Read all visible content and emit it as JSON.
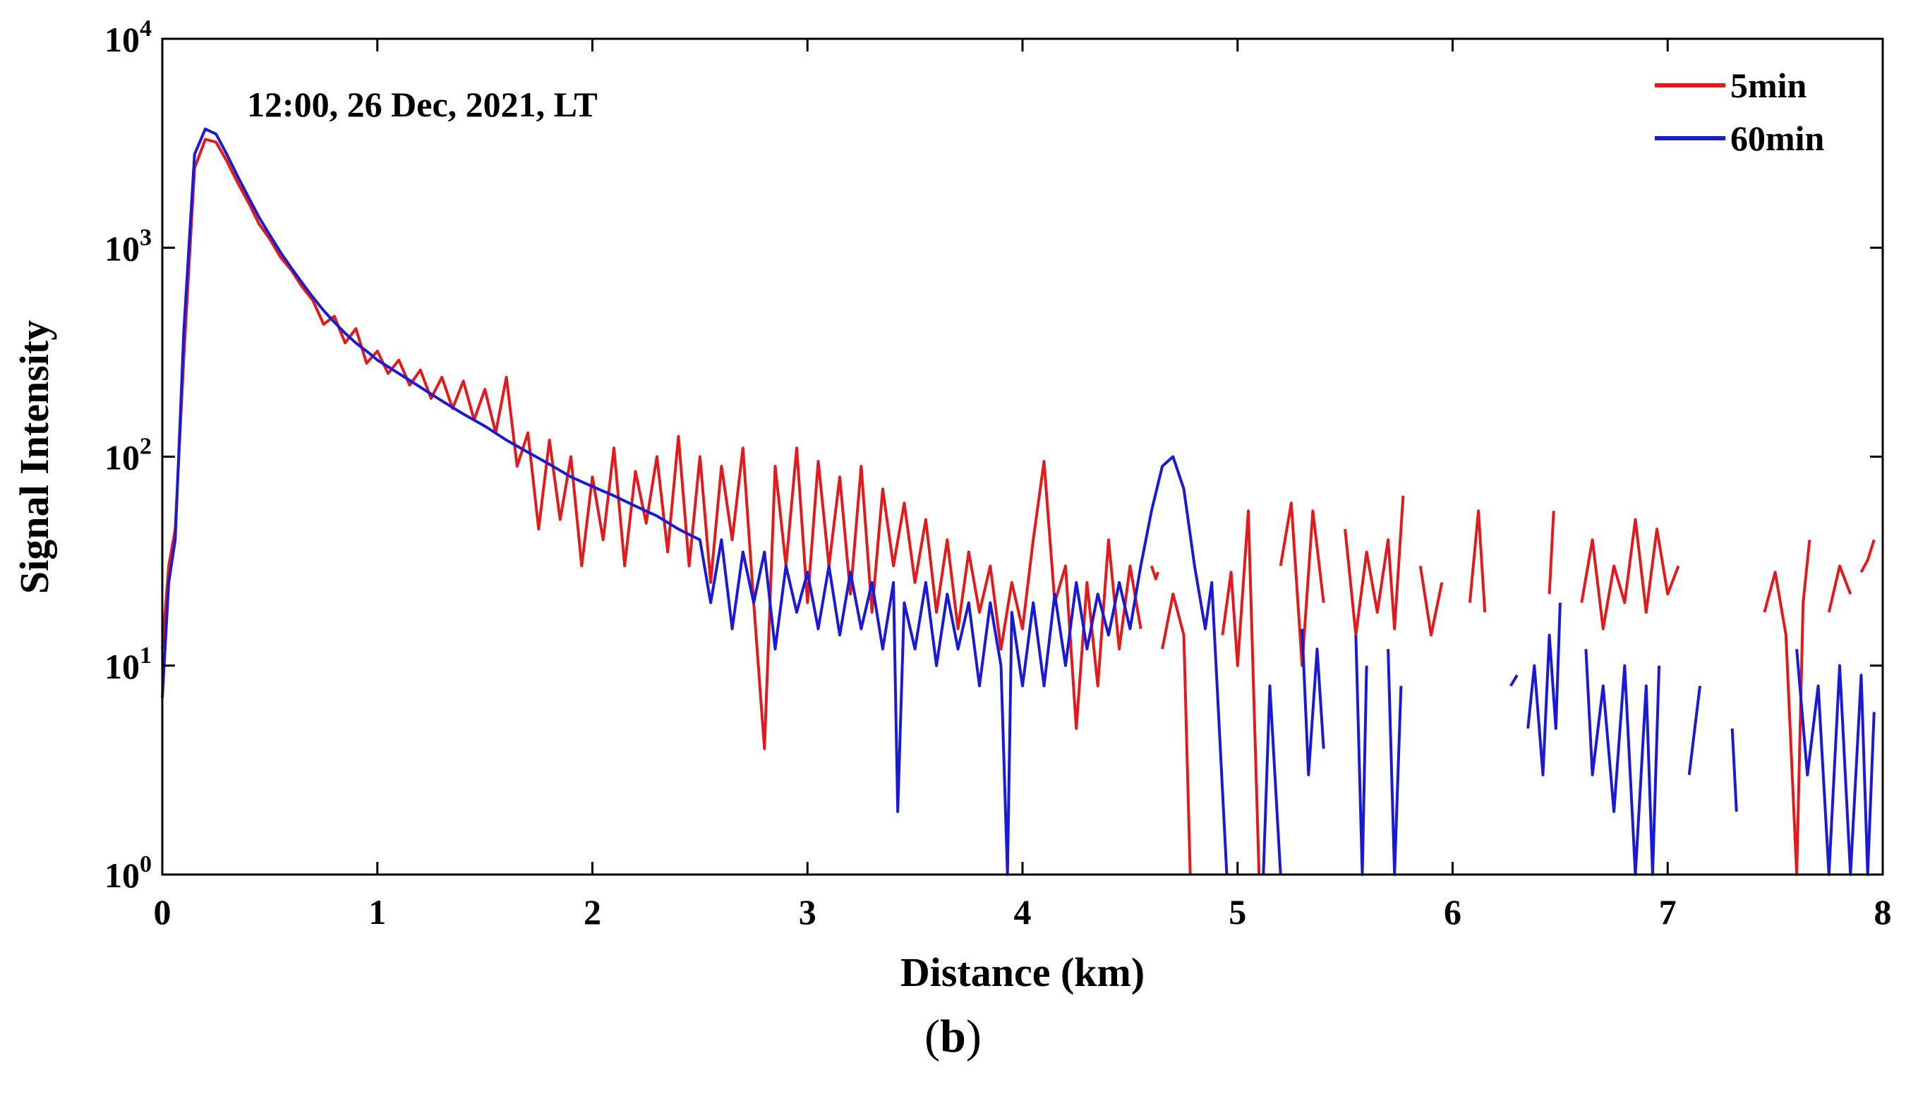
{
  "caption": {
    "open": "(",
    "letter": "b",
    "close": ")"
  },
  "chart_data": {
    "type": "line",
    "title": "",
    "annotation": "12:00, 26 Dec, 2021, LT",
    "xlabel": "Distance (km)",
    "ylabel": "Signal Intensity",
    "xlim": [
      0,
      8
    ],
    "ylim": [
      1,
      10000
    ],
    "yscale": "log",
    "x_ticks": [
      0,
      1,
      2,
      3,
      4,
      5,
      6,
      7,
      8
    ],
    "x_tick_labels": [
      "0",
      "1",
      "2",
      "3",
      "4",
      "5",
      "6",
      "7",
      "8"
    ],
    "y_ticks": [
      1,
      10,
      100,
      1000,
      10000
    ],
    "y_tick_labels": [
      {
        "base": "10",
        "exp": "0"
      },
      {
        "base": "10",
        "exp": "1"
      },
      {
        "base": "10",
        "exp": "2"
      },
      {
        "base": "10",
        "exp": "3"
      },
      {
        "base": "10",
        "exp": "4"
      }
    ],
    "grid": false,
    "legend_position": "top-right",
    "series": [
      {
        "name": "5min",
        "color": "#e31a1c",
        "points": [
          [
            0.0,
            12
          ],
          [
            0.03,
            30
          ],
          [
            0.06,
            45
          ],
          [
            0.1,
            300
          ],
          [
            0.15,
            2400
          ],
          [
            0.2,
            3300
          ],
          [
            0.25,
            3200
          ],
          [
            0.3,
            2600
          ],
          [
            0.35,
            2050
          ],
          [
            0.4,
            1650
          ],
          [
            0.45,
            1300
          ],
          [
            0.5,
            1100
          ],
          [
            0.55,
            900
          ],
          [
            0.6,
            780
          ],
          [
            0.65,
            650
          ],
          [
            0.7,
            560
          ],
          [
            0.75,
            430
          ],
          [
            0.8,
            470
          ],
          [
            0.85,
            350
          ],
          [
            0.9,
            410
          ],
          [
            0.95,
            280
          ],
          [
            1.0,
            320
          ],
          [
            1.05,
            250
          ],
          [
            1.1,
            290
          ],
          [
            1.15,
            220
          ],
          [
            1.2,
            260
          ],
          [
            1.25,
            190
          ],
          [
            1.3,
            240
          ],
          [
            1.35,
            170
          ],
          [
            1.4,
            230
          ],
          [
            1.45,
            150
          ],
          [
            1.5,
            210
          ],
          [
            1.55,
            130
          ],
          [
            1.6,
            240
          ],
          [
            1.65,
            90
          ],
          [
            1.7,
            130
          ],
          [
            1.75,
            45
          ],
          [
            1.8,
            120
          ],
          [
            1.85,
            50
          ],
          [
            1.9,
            100
          ],
          [
            1.95,
            30
          ],
          [
            2.0,
            80
          ],
          [
            2.05,
            40
          ],
          [
            2.1,
            110
          ],
          [
            2.15,
            30
          ],
          [
            2.2,
            85
          ],
          [
            2.25,
            48
          ],
          [
            2.3,
            100
          ],
          [
            2.35,
            35
          ],
          [
            2.4,
            125
          ],
          [
            2.45,
            30
          ],
          [
            2.5,
            100
          ],
          [
            2.55,
            25
          ],
          [
            2.6,
            90
          ],
          [
            2.65,
            40
          ],
          [
            2.7,
            110
          ],
          [
            2.75,
            20
          ],
          [
            2.8,
            4
          ],
          [
            2.85,
            90
          ],
          [
            2.9,
            30
          ],
          [
            2.95,
            110
          ],
          [
            3.0,
            20
          ],
          [
            3.05,
            95
          ],
          [
            3.1,
            30
          ],
          [
            3.15,
            80
          ],
          [
            3.2,
            22
          ],
          [
            3.25,
            90
          ],
          [
            3.3,
            18
          ],
          [
            3.35,
            70
          ],
          [
            3.4,
            30
          ],
          [
            3.45,
            60
          ],
          [
            3.5,
            25
          ],
          [
            3.55,
            50
          ],
          [
            3.6,
            18
          ],
          [
            3.65,
            40
          ],
          [
            3.7,
            15
          ],
          [
            3.75,
            35
          ],
          [
            3.8,
            18
          ],
          [
            3.85,
            30
          ],
          [
            3.9,
            12
          ],
          [
            3.95,
            25
          ],
          [
            4.0,
            15
          ],
          [
            4.05,
            40
          ],
          [
            4.1,
            95
          ],
          [
            4.15,
            20
          ],
          [
            4.2,
            30
          ],
          [
            4.25,
            5
          ],
          [
            4.3,
            25
          ],
          [
            4.35,
            8
          ],
          [
            4.4,
            40
          ],
          [
            4.45,
            12
          ],
          [
            4.5,
            30
          ],
          [
            4.55,
            15
          ]
        ],
        "segments": [
          [
            [
              4.6,
              30
            ],
            [
              4.62,
              26
            ],
            [
              4.63,
              28
            ]
          ],
          [
            [
              4.65,
              12
            ],
            [
              4.7,
              22
            ],
            [
              4.75,
              14
            ],
            [
              4.78,
              1
            ]
          ],
          [
            [
              4.93,
              14
            ],
            [
              4.97,
              28
            ],
            [
              5.0,
              10
            ],
            [
              5.05,
              55
            ],
            [
              5.1,
              1
            ]
          ],
          [
            [
              5.2,
              30
            ],
            [
              5.25,
              60
            ],
            [
              5.3,
              10
            ],
            [
              5.35,
              55
            ],
            [
              5.4,
              20
            ]
          ],
          [
            [
              5.5,
              45
            ],
            [
              5.55,
              14
            ],
            [
              5.6,
              35
            ],
            [
              5.65,
              18
            ],
            [
              5.7,
              40
            ],
            [
              5.73,
              15
            ],
            [
              5.77,
              65
            ]
          ],
          [
            [
              5.85,
              30
            ],
            [
              5.9,
              14
            ],
            [
              5.95,
              25
            ]
          ],
          [
            [
              6.08,
              20
            ],
            [
              6.12,
              55
            ],
            [
              6.15,
              18
            ]
          ],
          [
            [
              6.45,
              22
            ],
            [
              6.47,
              55
            ]
          ],
          [
            [
              6.6,
              20
            ],
            [
              6.65,
              40
            ],
            [
              6.7,
              15
            ],
            [
              6.75,
              30
            ],
            [
              6.8,
              20
            ],
            [
              6.85,
              50
            ],
            [
              6.9,
              18
            ],
            [
              6.95,
              45
            ],
            [
              7.0,
              22
            ],
            [
              7.05,
              30
            ]
          ],
          [
            [
              7.45,
              18
            ],
            [
              7.5,
              28
            ],
            [
              7.55,
              14
            ],
            [
              7.6,
              1
            ],
            [
              7.63,
              20
            ],
            [
              7.66,
              40
            ]
          ],
          [
            [
              7.75,
              18
            ],
            [
              7.8,
              30
            ],
            [
              7.85,
              22
            ]
          ],
          [
            [
              7.9,
              28
            ],
            [
              7.93,
              32
            ],
            [
              7.96,
              40
            ]
          ]
        ]
      },
      {
        "name": "60min",
        "color": "#1a1ad6",
        "points": [
          [
            0.0,
            7
          ],
          [
            0.03,
            25
          ],
          [
            0.06,
            40
          ],
          [
            0.1,
            400
          ],
          [
            0.15,
            2800
          ],
          [
            0.2,
            3700
          ],
          [
            0.25,
            3500
          ],
          [
            0.3,
            2800
          ],
          [
            0.35,
            2200
          ],
          [
            0.4,
            1750
          ],
          [
            0.45,
            1400
          ],
          [
            0.5,
            1150
          ],
          [
            0.55,
            950
          ],
          [
            0.6,
            800
          ],
          [
            0.65,
            680
          ],
          [
            0.7,
            580
          ],
          [
            0.75,
            500
          ],
          [
            0.8,
            440
          ],
          [
            0.85,
            390
          ],
          [
            0.9,
            350
          ],
          [
            0.95,
            320
          ],
          [
            1.0,
            290
          ],
          [
            1.1,
            250
          ],
          [
            1.2,
            215
          ],
          [
            1.3,
            185
          ],
          [
            1.4,
            160
          ],
          [
            1.5,
            140
          ],
          [
            1.6,
            120
          ],
          [
            1.7,
            105
          ],
          [
            1.8,
            92
          ],
          [
            1.9,
            80
          ],
          [
            2.0,
            72
          ],
          [
            2.1,
            65
          ],
          [
            2.2,
            58
          ],
          [
            2.3,
            52
          ],
          [
            2.4,
            45
          ],
          [
            2.5,
            40
          ],
          [
            2.55,
            20
          ],
          [
            2.6,
            40
          ],
          [
            2.65,
            15
          ],
          [
            2.7,
            35
          ],
          [
            2.75,
            20
          ],
          [
            2.8,
            35
          ],
          [
            2.85,
            12
          ],
          [
            2.9,
            30
          ],
          [
            2.95,
            18
          ],
          [
            3.0,
            28
          ],
          [
            3.05,
            15
          ],
          [
            3.1,
            30
          ],
          [
            3.15,
            14
          ],
          [
            3.2,
            28
          ],
          [
            3.25,
            15
          ],
          [
            3.3,
            25
          ],
          [
            3.35,
            12
          ],
          [
            3.4,
            25
          ],
          [
            3.42,
            2
          ],
          [
            3.45,
            20
          ],
          [
            3.5,
            12
          ],
          [
            3.55,
            25
          ],
          [
            3.6,
            10
          ],
          [
            3.65,
            22
          ],
          [
            3.7,
            12
          ],
          [
            3.75,
            20
          ],
          [
            3.8,
            8
          ],
          [
            3.85,
            20
          ],
          [
            3.9,
            10
          ],
          [
            3.93,
            1
          ],
          [
            3.95,
            18
          ],
          [
            4.0,
            8
          ],
          [
            4.05,
            20
          ],
          [
            4.1,
            8
          ],
          [
            4.15,
            22
          ],
          [
            4.2,
            10
          ],
          [
            4.25,
            25
          ],
          [
            4.3,
            12
          ],
          [
            4.35,
            22
          ],
          [
            4.4,
            14
          ],
          [
            4.45,
            25
          ],
          [
            4.5,
            15
          ],
          [
            4.55,
            30
          ],
          [
            4.6,
            55
          ],
          [
            4.65,
            90
          ],
          [
            4.7,
            100
          ],
          [
            4.75,
            70
          ],
          [
            4.8,
            30
          ],
          [
            4.85,
            15
          ],
          [
            4.88,
            25
          ],
          [
            4.9,
            10
          ],
          [
            4.95,
            1
          ]
        ],
        "segments": [
          [
            [
              5.12,
              1
            ],
            [
              5.15,
              8
            ],
            [
              5.2,
              1
            ]
          ],
          [
            [
              5.3,
              15
            ],
            [
              5.33,
              3
            ],
            [
              5.37,
              12
            ],
            [
              5.4,
              4
            ]
          ],
          [
            [
              5.55,
              14
            ],
            [
              5.58,
              1
            ],
            [
              5.6,
              10
            ]
          ],
          [
            [
              5.7,
              12
            ],
            [
              5.73,
              1
            ],
            [
              5.76,
              8
            ]
          ],
          [
            [
              6.27,
              8
            ],
            [
              6.3,
              9
            ]
          ],
          [
            [
              6.35,
              5
            ],
            [
              6.38,
              10
            ],
            [
              6.42,
              3
            ],
            [
              6.45,
              14
            ],
            [
              6.48,
              5
            ],
            [
              6.5,
              20
            ]
          ],
          [
            [
              6.62,
              12
            ],
            [
              6.65,
              3
            ],
            [
              6.7,
              8
            ],
            [
              6.75,
              2
            ],
            [
              6.8,
              10
            ],
            [
              6.85,
              1
            ],
            [
              6.9,
              8
            ],
            [
              6.93,
              1
            ],
            [
              6.96,
              10
            ]
          ],
          [
            [
              7.1,
              3
            ],
            [
              7.15,
              8
            ]
          ],
          [
            [
              7.3,
              5
            ],
            [
              7.32,
              2
            ]
          ],
          [
            [
              7.6,
              12
            ],
            [
              7.65,
              3
            ],
            [
              7.7,
              8
            ],
            [
              7.75,
              1
            ],
            [
              7.8,
              10
            ],
            [
              7.85,
              1
            ],
            [
              7.9,
              9
            ],
            [
              7.93,
              1
            ],
            [
              7.96,
              6
            ]
          ]
        ]
      }
    ]
  }
}
